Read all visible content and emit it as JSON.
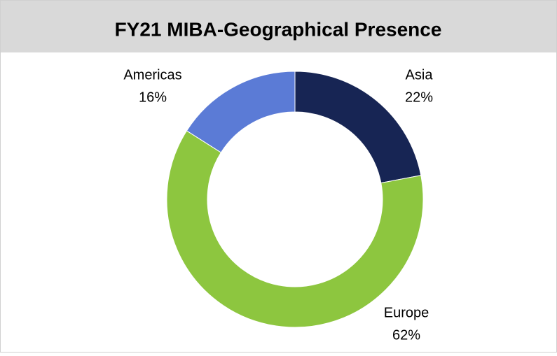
{
  "chart_data": {
    "type": "pie",
    "donut": true,
    "title": "FY21 MIBA-Geographical Presence",
    "categories": [
      "Asia",
      "Europe",
      "Americas"
    ],
    "values": [
      22,
      62,
      16
    ],
    "value_labels": [
      "22%",
      "62%",
      "16%"
    ],
    "colors": [
      "#172554",
      "#8dc63f",
      "#5b7bd6"
    ]
  }
}
